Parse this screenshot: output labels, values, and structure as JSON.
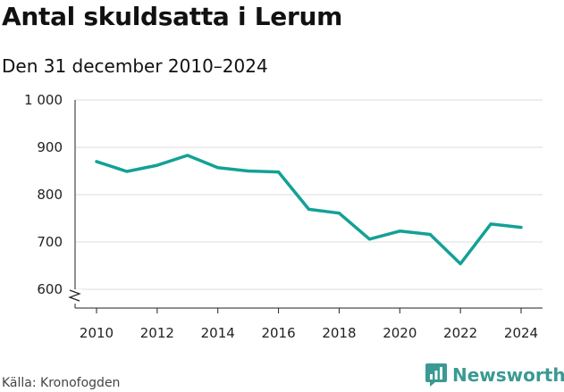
{
  "title": "Antal skuldsatta i Lerum",
  "subtitle": "Den 31 december 2010–2024",
  "source": "Källa: Kronofogden",
  "brand": {
    "name": "Newsworthy",
    "icon": "newsworthy-logo-icon",
    "color": "#3a9a92"
  },
  "chart_data": {
    "type": "line",
    "title": "Antal skuldsatta i Lerum",
    "subtitle": "Den 31 december 2010–2024",
    "xlabel": "",
    "ylabel": "",
    "x": [
      2010,
      2011,
      2012,
      2013,
      2014,
      2015,
      2016,
      2017,
      2018,
      2019,
      2020,
      2021,
      2022,
      2023,
      2024
    ],
    "series": [
      {
        "name": "Antal skuldsatta",
        "color": "#13a196",
        "values": [
          870,
          849,
          862,
          883,
          857,
          850,
          848,
          769,
          761,
          706,
          723,
          716,
          654,
          738,
          731
        ]
      }
    ],
    "ylim": [
      580,
      1000
    ],
    "y_ticks": [
      600,
      700,
      800,
      900,
      1000
    ],
    "y_tick_labels": [
      "600",
      "700",
      "800",
      "900",
      "1 000"
    ],
    "x_ticks": [
      2010,
      2012,
      2014,
      2016,
      2018,
      2020,
      2022,
      2024
    ],
    "x_tick_labels": [
      "2010",
      "2012",
      "2014",
      "2016",
      "2018",
      "2020",
      "2022",
      "2024"
    ],
    "grid": true,
    "axis_break": true
  }
}
